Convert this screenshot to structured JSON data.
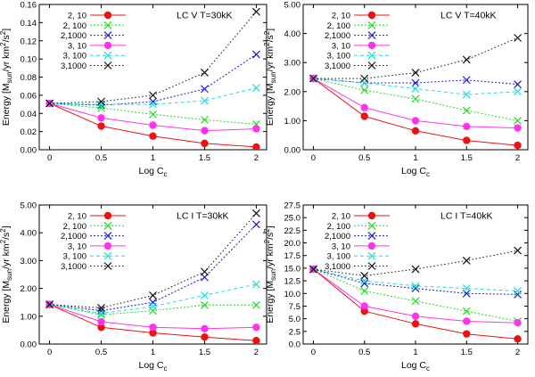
{
  "colors": {
    "2, 10": "#ee1111",
    "2, 100": "#22dd22",
    "2,1000": "#1a1ad0",
    "3, 10": "#ff33ee",
    "3, 100": "#22dddd",
    "3,1000": "#111111"
  },
  "chart_data": [
    {
      "type": "line",
      "title": "LC V T=30kK",
      "xlabel": "Log C",
      "xlabel_sub": "c",
      "ylabel": "Energy [M",
      "ylabel_sub": "sun",
      "ylabel_rest": "/yr km",
      "ylabel_sup": "2",
      "ylabel_end": "/s",
      "xlim": [
        -0.1,
        2.1
      ],
      "ylim": [
        0,
        0.16
      ],
      "x": [
        0,
        0.5,
        1,
        1.5,
        2
      ],
      "xticks": [
        "0",
        "0.5",
        "1",
        "1.5",
        "2"
      ],
      "yticks": [
        {
          "v": 0,
          "label": "0.00"
        },
        {
          "v": 0.02,
          "label": "0.02"
        },
        {
          "v": 0.04,
          "label": "0.04"
        },
        {
          "v": 0.06,
          "label": "0.06"
        },
        {
          "v": 0.08,
          "label": "0.08"
        },
        {
          "v": 0.1,
          "label": "0.10"
        },
        {
          "v": 0.12,
          "label": "0.12"
        },
        {
          "v": 0.14,
          "label": "0.14"
        },
        {
          "v": 0.16,
          "label": "0.16"
        }
      ],
      "series": [
        {
          "name": "2, 10",
          "marker": "circle",
          "values": [
            0.051,
            0.026,
            0.015,
            0.007,
            0.003
          ]
        },
        {
          "name": "2, 100",
          "marker": "x",
          "values": [
            0.051,
            0.046,
            0.039,
            0.033,
            0.028
          ]
        },
        {
          "name": "2,1000",
          "marker": "x",
          "values": [
            0.051,
            0.049,
            0.053,
            0.067,
            0.105
          ]
        },
        {
          "name": "3, 10",
          "marker": "circle",
          "values": [
            0.051,
            0.035,
            0.027,
            0.021,
            0.023
          ]
        },
        {
          "name": "3, 100",
          "marker": "x",
          "values": [
            0.051,
            0.05,
            0.05,
            0.054,
            0.068
          ]
        },
        {
          "name": "3,1000",
          "marker": "x",
          "values": [
            0.051,
            0.053,
            0.06,
            0.085,
            0.152
          ]
        }
      ]
    },
    {
      "type": "line",
      "title": "LC V T=40kK",
      "xlabel": "Log C",
      "xlabel_sub": "c",
      "ylabel": "Energy [M",
      "ylabel_sub": "sun",
      "ylabel_rest": "/yr km",
      "ylabel_sup": "2",
      "ylabel_end": "/s",
      "xlim": [
        -0.1,
        2.1
      ],
      "ylim": [
        0,
        5
      ],
      "x": [
        0,
        0.5,
        1,
        1.5,
        2
      ],
      "xticks": [
        "0",
        "0.5",
        "1",
        "1.5",
        "2"
      ],
      "yticks": [
        {
          "v": 0,
          "label": "0.00"
        },
        {
          "v": 1,
          "label": "1.00"
        },
        {
          "v": 2,
          "label": "2.00"
        },
        {
          "v": 3,
          "label": "3.00"
        },
        {
          "v": 4,
          "label": "4.00"
        },
        {
          "v": 5,
          "label": "5.00"
        }
      ],
      "series": [
        {
          "name": "2, 10",
          "marker": "circle",
          "values": [
            2.45,
            1.15,
            0.65,
            0.32,
            0.15
          ]
        },
        {
          "name": "2, 100",
          "marker": "x",
          "values": [
            2.45,
            2.05,
            1.75,
            1.35,
            1.0
          ]
        },
        {
          "name": "2,1000",
          "marker": "x",
          "values": [
            2.45,
            2.3,
            2.3,
            2.4,
            2.25
          ]
        },
        {
          "name": "3, 10",
          "marker": "circle",
          "values": [
            2.45,
            1.45,
            1.0,
            0.8,
            0.75
          ]
        },
        {
          "name": "3, 100",
          "marker": "x",
          "values": [
            2.45,
            2.3,
            2.1,
            1.9,
            2.0
          ]
        },
        {
          "name": "3,1000",
          "marker": "x",
          "values": [
            2.45,
            2.45,
            2.65,
            3.1,
            3.85
          ]
        }
      ]
    },
    {
      "type": "line",
      "title": "LC I T=30kK",
      "xlabel": "Log C",
      "xlabel_sub": "c",
      "ylabel": "Energy [M",
      "ylabel_sub": "sun",
      "ylabel_rest": "/yr km",
      "ylabel_sup": "2",
      "ylabel_end": "/s",
      "xlim": [
        -0.1,
        2.1
      ],
      "ylim": [
        0,
        5
      ],
      "x": [
        0,
        0.5,
        1,
        1.5,
        2
      ],
      "xticks": [
        "0",
        "0.5",
        "1",
        "1.5",
        "2"
      ],
      "yticks": [
        {
          "v": 0,
          "label": "0.00"
        },
        {
          "v": 1,
          "label": "1.00"
        },
        {
          "v": 2,
          "label": "2.00"
        },
        {
          "v": 3,
          "label": "3.00"
        },
        {
          "v": 4,
          "label": "4.00"
        },
        {
          "v": 5,
          "label": "5.00"
        }
      ],
      "series": [
        {
          "name": "2, 10",
          "marker": "circle",
          "values": [
            1.42,
            0.6,
            0.4,
            0.25,
            0.12
          ]
        },
        {
          "name": "2, 100",
          "marker": "x",
          "values": [
            1.42,
            1.05,
            1.2,
            1.4,
            1.4
          ]
        },
        {
          "name": "2,1000",
          "marker": "x",
          "values": [
            1.42,
            1.2,
            1.5,
            2.4,
            4.3
          ]
        },
        {
          "name": "3, 10",
          "marker": "circle",
          "values": [
            1.42,
            0.8,
            0.6,
            0.55,
            0.6
          ]
        },
        {
          "name": "3, 100",
          "marker": "x",
          "values": [
            1.42,
            1.1,
            1.35,
            1.75,
            2.15
          ]
        },
        {
          "name": "3,1000",
          "marker": "x",
          "values": [
            1.42,
            1.3,
            1.75,
            2.6,
            4.7
          ]
        }
      ]
    },
    {
      "type": "line",
      "title": "LC I T=40kK",
      "xlabel": "Log C",
      "xlabel_sub": "c",
      "ylabel": "Energy [M",
      "ylabel_sub": "sun",
      "ylabel_rest": "/yr km",
      "ylabel_sup": "2",
      "ylabel_end": "/s",
      "xlim": [
        -0.1,
        2.1
      ],
      "ylim": [
        0,
        27.5
      ],
      "x": [
        0,
        0.5,
        1,
        1.5,
        2
      ],
      "xticks": [
        "0",
        "0.5",
        "1",
        "1.5",
        "2"
      ],
      "yticks": [
        {
          "v": 0,
          "label": "0.0"
        },
        {
          "v": 2.5,
          "label": "2.5"
        },
        {
          "v": 5,
          "label": "5.0"
        },
        {
          "v": 7.5,
          "label": "7.5"
        },
        {
          "v": 10,
          "label": "10.0"
        },
        {
          "v": 12.5,
          "label": "12.5"
        },
        {
          "v": 15,
          "label": "15.0"
        },
        {
          "v": 17.5,
          "label": "17.5"
        },
        {
          "v": 20,
          "label": "20.0"
        },
        {
          "v": 22.5,
          "label": "22.5"
        },
        {
          "v": 25,
          "label": "25.0"
        },
        {
          "v": 27.5,
          "label": "27.5"
        }
      ],
      "series": [
        {
          "name": "2, 10",
          "marker": "circle",
          "values": [
            14.8,
            6.5,
            4.0,
            2.0,
            1.0
          ]
        },
        {
          "name": "2, 100",
          "marker": "x",
          "values": [
            14.8,
            10.5,
            8.5,
            6.5,
            4.5
          ]
        },
        {
          "name": "2,1000",
          "marker": "x",
          "values": [
            14.8,
            12.0,
            11.0,
            10.0,
            9.8
          ]
        },
        {
          "name": "3, 10",
          "marker": "circle",
          "values": [
            14.8,
            7.5,
            5.5,
            4.5,
            4.2
          ]
        },
        {
          "name": "3, 100",
          "marker": "x",
          "values": [
            14.8,
            12.5,
            11.5,
            11.0,
            10.5
          ]
        },
        {
          "name": "3,1000",
          "marker": "x",
          "values": [
            14.8,
            13.5,
            14.8,
            16.5,
            18.5
          ]
        }
      ]
    }
  ]
}
